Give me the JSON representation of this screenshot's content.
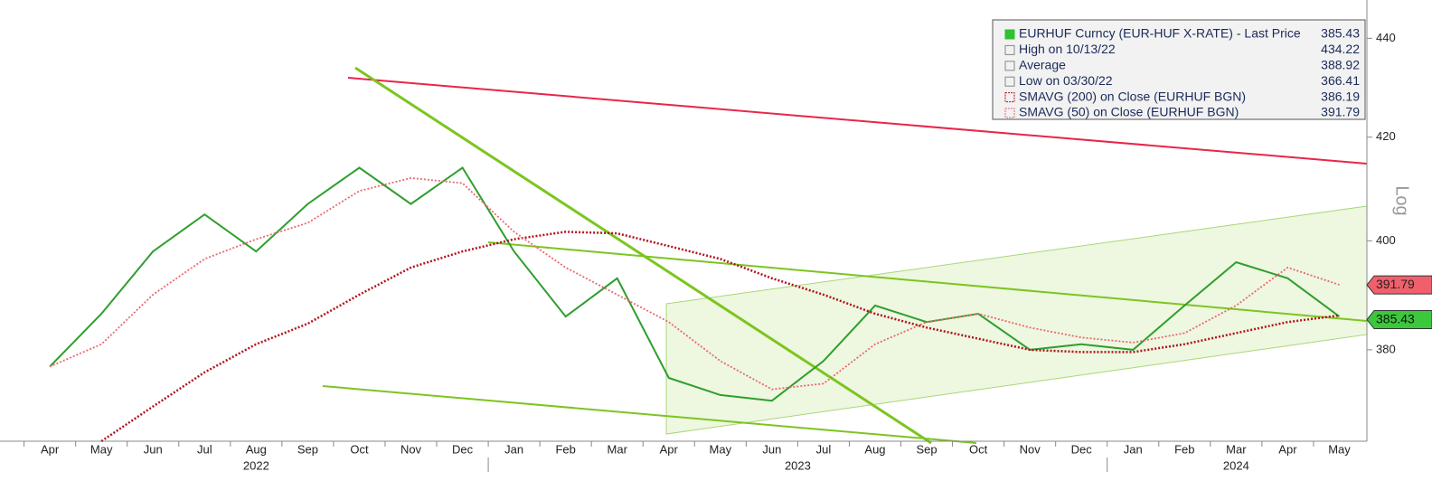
{
  "chart_data": {
    "type": "line",
    "log_scale": true,
    "axis_label": "Log",
    "categories": [
      "Apr",
      "May",
      "Jun",
      "Jul",
      "Aug",
      "Sep",
      "Oct",
      "Nov",
      "Dec",
      "Jan",
      "Feb",
      "Mar",
      "Apr",
      "May",
      "Jun",
      "Jul",
      "Aug",
      "Sep",
      "Oct",
      "Nov",
      "Dec",
      "Jan",
      "Feb",
      "Mar",
      "Apr",
      "May"
    ],
    "years": [
      "2022",
      "2023",
      "2024"
    ],
    "ylim": [
      364,
      448
    ],
    "yticks": [
      380,
      400,
      420,
      440
    ],
    "series": [
      {
        "name": "EURHUF Curncy (EUR-HUF X-RATE) - Last Price",
        "color": "#2e9e2e",
        "values": [
          377,
          386.5,
          398,
          405,
          398,
          407,
          414,
          407,
          414,
          398,
          386,
          393,
          375,
          372,
          371,
          378,
          388,
          385,
          386.5,
          380,
          381,
          380,
          388,
          396,
          393,
          386
        ]
      },
      {
        "name": "SMAVG (200)  on Close (EURHUF BGN)",
        "color": "#b0141c",
        "values": [
          null,
          364,
          370,
          376,
          381,
          384.7,
          390,
          395,
          398,
          400.3,
          401.7,
          401.4,
          399,
          396.6,
          393,
          390,
          386.5,
          384,
          382,
          380,
          379.6,
          379.6,
          381,
          383,
          385,
          386.2
        ]
      },
      {
        "name": "SMAVG (50)  on Close (EURHUF BGN)",
        "color": "#e8696e",
        "values": [
          377,
          381,
          390,
          396.6,
          400.3,
          403.4,
          409.5,
          412,
          411,
          401.7,
          395,
          390,
          385,
          378,
          373,
          374,
          381,
          385,
          386.5,
          384,
          382.2,
          381.3,
          383,
          388,
          395,
          391.8
        ]
      }
    ],
    "legend": [
      {
        "label": "EURHUF Curncy (EUR-HUF X-RATE) - Last Price",
        "value": 385.43
      },
      {
        "label": "High on 10/13/22",
        "value": 434.22
      },
      {
        "label": "Average",
        "value": 388.92
      },
      {
        "label": "Low on 03/30/22",
        "value": 366.41
      },
      {
        "label": "SMAVG (200)  on Close (EURHUF BGN)",
        "value": 386.19
      },
      {
        "label": "SMAVG (50)  on Close (EURHUF BGN)",
        "value": 391.79
      }
    ]
  }
}
